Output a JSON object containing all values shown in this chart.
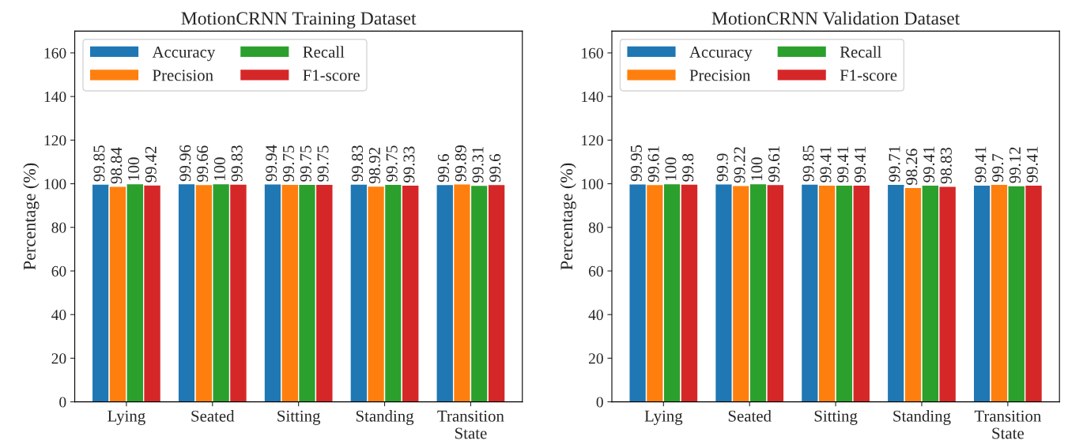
{
  "chart_data": [
    {
      "type": "bar",
      "title": "MotionCRNN Training Dataset",
      "ylabel": "Percentage (%)",
      "categories": [
        "Lying",
        "Seated",
        "Sitting",
        "Standing",
        "Transition\nState"
      ],
      "ylim": [
        0,
        170
      ],
      "yticks": [
        0,
        20,
        40,
        60,
        80,
        100,
        120,
        140,
        160
      ],
      "legend": "top left",
      "data_labels": true,
      "series": [
        {
          "name": "Accuracy",
          "color": "#1f77b4",
          "values": [
            99.85,
            99.96,
            99.94,
            99.83,
            99.6
          ]
        },
        {
          "name": "Precision",
          "color": "#ff7f0e",
          "values": [
            98.84,
            99.66,
            99.75,
            98.92,
            99.89
          ]
        },
        {
          "name": "Recall",
          "color": "#2ca02c",
          "values": [
            100,
            100,
            99.75,
            99.75,
            99.31
          ]
        },
        {
          "name": "F1-score",
          "color": "#d62728",
          "values": [
            99.42,
            99.83,
            99.75,
            99.33,
            99.6
          ]
        }
      ]
    },
    {
      "type": "bar",
      "title": "MotionCRNN Validation Dataset",
      "ylabel": "Percentage (%)",
      "categories": [
        "Lying",
        "Seated",
        "Sitting",
        "Standing",
        "Transition\nState"
      ],
      "ylim": [
        0,
        170
      ],
      "yticks": [
        0,
        20,
        40,
        60,
        80,
        100,
        120,
        140,
        160
      ],
      "legend": "top left",
      "data_labels": true,
      "series": [
        {
          "name": "Accuracy",
          "color": "#1f77b4",
          "values": [
            99.95,
            99.9,
            99.85,
            99.71,
            99.41
          ]
        },
        {
          "name": "Precision",
          "color": "#ff7f0e",
          "values": [
            99.61,
            99.22,
            99.41,
            98.26,
            99.7
          ]
        },
        {
          "name": "Recall",
          "color": "#2ca02c",
          "values": [
            100,
            100,
            99.41,
            99.41,
            99.12
          ]
        },
        {
          "name": "F1-score",
          "color": "#d62728",
          "values": [
            99.8,
            99.61,
            99.41,
            98.83,
            99.41
          ]
        }
      ]
    }
  ]
}
